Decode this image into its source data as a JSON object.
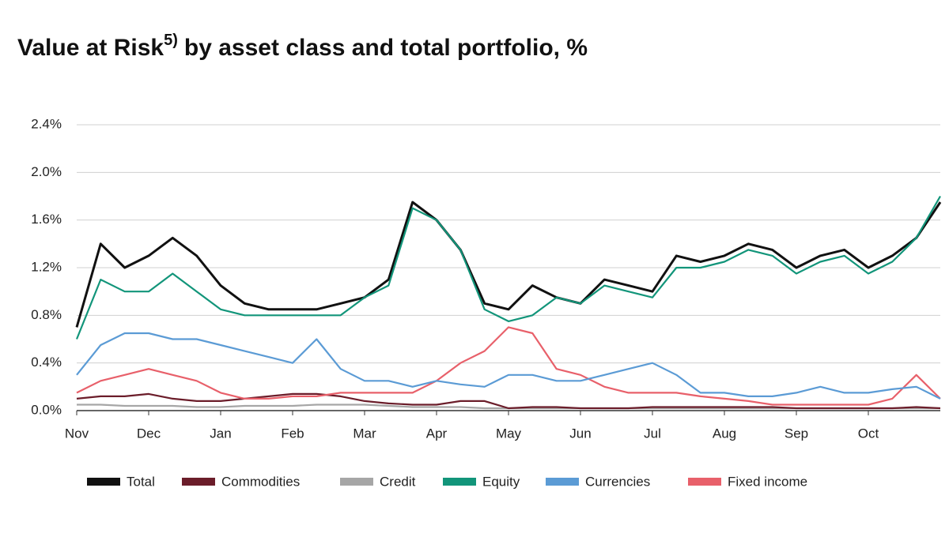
{
  "chart_data": {
    "type": "line",
    "title": "Value at Risk",
    "title_superscript": "5)",
    "title_suffix": "by asset class and total portfolio, %",
    "categories": [
      "Nov",
      null,
      null,
      "Dec",
      null,
      null,
      "Jan",
      null,
      null,
      "Feb",
      null,
      null,
      "Mar",
      null,
      null,
      "Apr",
      null,
      null,
      "May",
      null,
      null,
      "Jun",
      null,
      null,
      "Jul",
      null,
      null,
      "Aug",
      null,
      null,
      "Sep",
      null,
      null,
      "Oct",
      null,
      null,
      null
    ],
    "series": [
      {
        "name": "Total",
        "color": "#111111",
        "values": [
          0.7,
          1.4,
          1.2,
          1.3,
          1.45,
          1.3,
          1.05,
          0.9,
          0.85,
          0.85,
          0.85,
          0.9,
          0.95,
          1.1,
          1.75,
          1.6,
          1.35,
          0.9,
          0.85,
          1.05,
          0.95,
          0.9,
          1.1,
          1.05,
          1.0,
          1.3,
          1.25,
          1.3,
          1.4,
          1.35,
          1.2,
          1.3,
          1.35,
          1.2,
          1.3,
          1.45,
          1.75
        ]
      },
      {
        "name": "Commodities",
        "color": "#6b1d2a",
        "values": [
          0.1,
          0.12,
          0.12,
          0.14,
          0.1,
          0.08,
          0.08,
          0.1,
          0.12,
          0.14,
          0.14,
          0.12,
          0.08,
          0.06,
          0.05,
          0.05,
          0.08,
          0.08,
          0.02,
          0.03,
          0.03,
          0.02,
          0.02,
          0.02,
          0.03,
          0.03,
          0.03,
          0.03,
          0.03,
          0.03,
          0.02,
          0.02,
          0.02,
          0.02,
          0.02,
          0.03,
          0.02
        ]
      },
      {
        "name": "Credit",
        "color": "#a6a6a6",
        "values": [
          0.05,
          0.05,
          0.04,
          0.04,
          0.04,
          0.03,
          0.03,
          0.04,
          0.04,
          0.04,
          0.05,
          0.05,
          0.05,
          0.04,
          0.03,
          0.03,
          0.03,
          0.02,
          0.02,
          0.02,
          0.02,
          0.02,
          0.02,
          0.02,
          0.02,
          0.02,
          0.02,
          0.02,
          0.02,
          0.02,
          0.02,
          0.02,
          0.02,
          0.02,
          0.02,
          0.02,
          0.02
        ]
      },
      {
        "name": "Equity",
        "color": "#12957a",
        "values": [
          0.6,
          1.1,
          1.0,
          1.0,
          1.15,
          1.0,
          0.85,
          0.8,
          0.8,
          0.8,
          0.8,
          0.8,
          0.95,
          1.05,
          1.7,
          1.6,
          1.35,
          0.85,
          0.75,
          0.8,
          0.95,
          0.9,
          1.05,
          1.0,
          0.95,
          1.2,
          1.2,
          1.25,
          1.35,
          1.3,
          1.15,
          1.25,
          1.3,
          1.15,
          1.25,
          1.45,
          1.8
        ]
      },
      {
        "name": "Currencies",
        "color": "#5b9bd5",
        "values": [
          0.3,
          0.55,
          0.65,
          0.65,
          0.6,
          0.6,
          0.55,
          0.5,
          0.45,
          0.4,
          0.6,
          0.35,
          0.25,
          0.25,
          0.2,
          0.25,
          0.22,
          0.2,
          0.3,
          0.3,
          0.25,
          0.25,
          0.3,
          0.35,
          0.4,
          0.3,
          0.15,
          0.15,
          0.12,
          0.12,
          0.15,
          0.2,
          0.15,
          0.15,
          0.18,
          0.2,
          0.1
        ]
      },
      {
        "name": "Fixed income",
        "color": "#e8606a",
        "values": [
          0.15,
          0.25,
          0.3,
          0.35,
          0.3,
          0.25,
          0.15,
          0.1,
          0.1,
          0.12,
          0.12,
          0.15,
          0.15,
          0.15,
          0.15,
          0.25,
          0.4,
          0.5,
          0.7,
          0.65,
          0.35,
          0.3,
          0.2,
          0.15,
          0.15,
          0.15,
          0.12,
          0.1,
          0.08,
          0.05,
          0.05,
          0.05,
          0.05,
          0.05,
          0.1,
          0.3,
          0.1
        ]
      }
    ],
    "ylim": [
      0,
      2.4
    ],
    "yticks": [
      {
        "value": 0,
        "label": "0.0%"
      },
      {
        "value": 0.4,
        "label": "0.4%"
      },
      {
        "value": 0.8,
        "label": "0.8%"
      },
      {
        "value": 1.2,
        "label": "1.2%"
      },
      {
        "value": 1.6,
        "label": "1.6%"
      },
      {
        "value": 2.0,
        "label": "2.0%"
      },
      {
        "value": 2.4,
        "label": "2.4%"
      }
    ],
    "grid": true
  }
}
